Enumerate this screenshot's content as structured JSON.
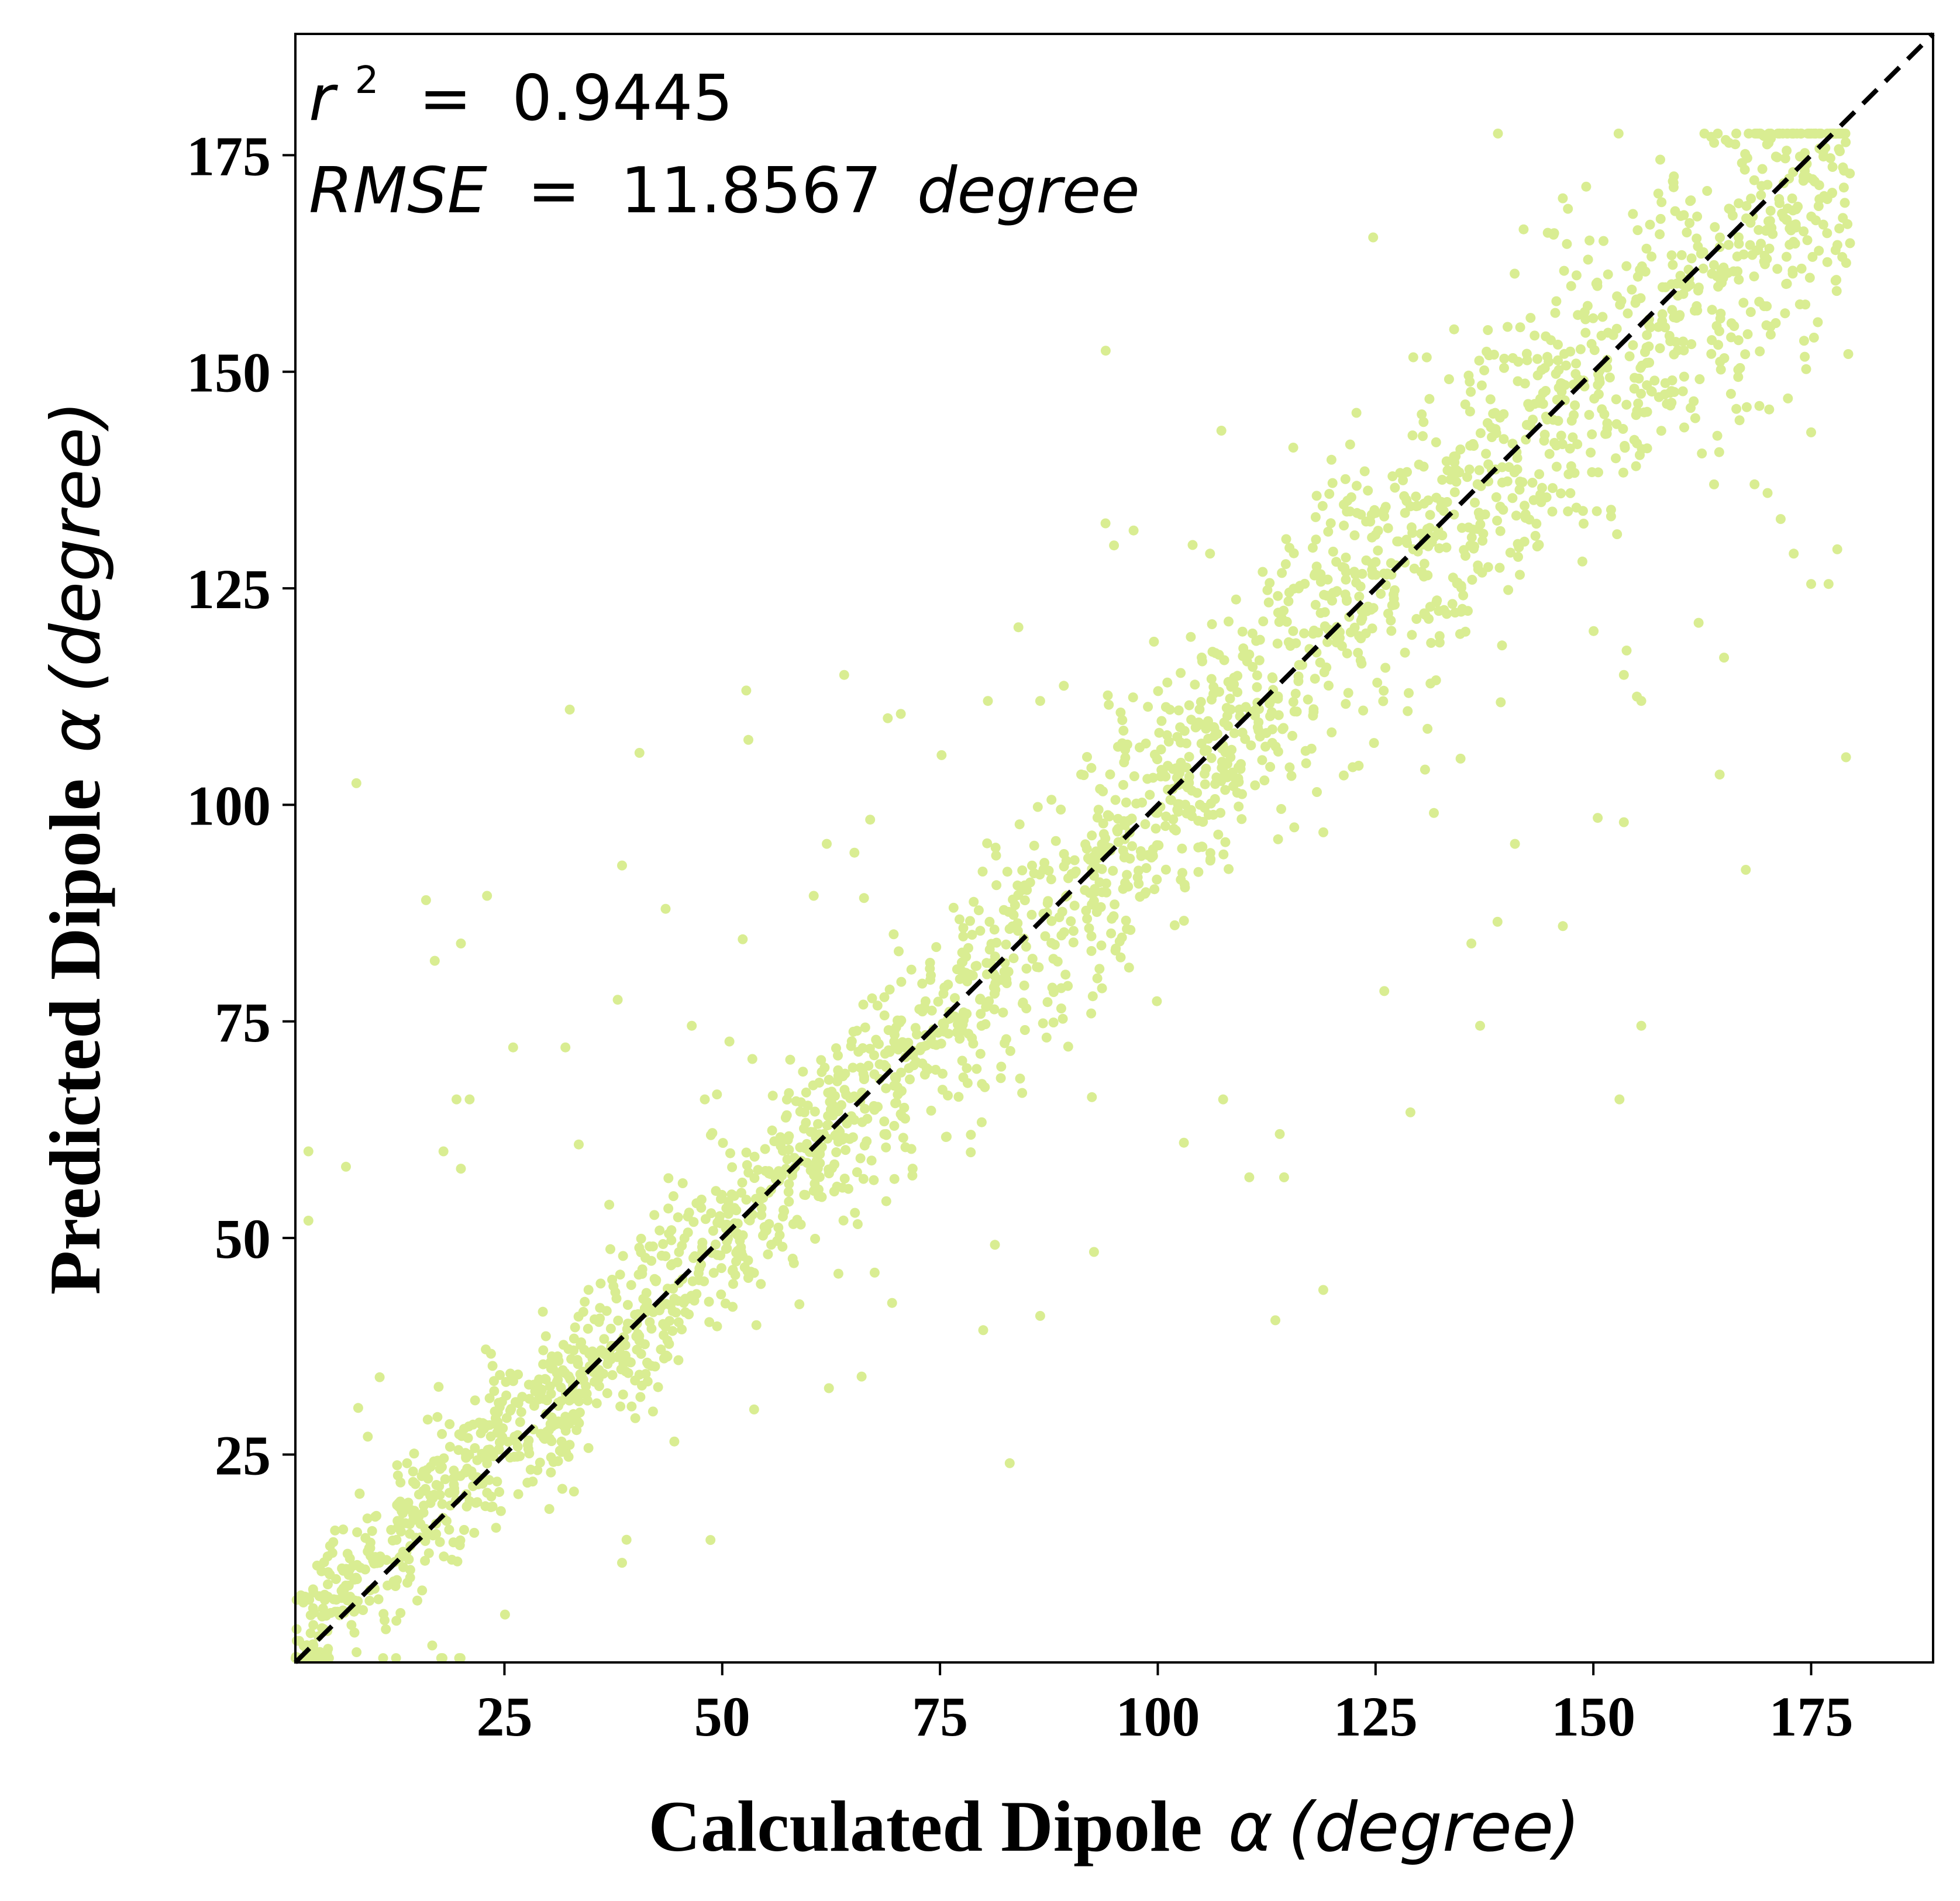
{
  "chart_data": {
    "type": "scatter",
    "xlabel": {
      "bold": "Calculated Dipole",
      "symbol": "α",
      "unit": "(degree)"
    },
    "ylabel": {
      "bold": "Predicted  Dipole",
      "symbol": "α",
      "unit": "(degree)"
    },
    "xlim": [
      1,
      189
    ],
    "ylim": [
      1,
      189
    ],
    "xticks": [
      25,
      50,
      75,
      100,
      125,
      150,
      175
    ],
    "yticks": [
      25,
      50,
      75,
      100,
      125,
      150,
      175
    ],
    "grid": false,
    "point_color": "#d9ed92",
    "reference_line": {
      "style": "dashed",
      "color": "#000000",
      "from": [
        1,
        1
      ],
      "to": [
        189,
        189
      ]
    },
    "annotations": {
      "r2_label": "r",
      "r2_sup": "2",
      "r2_eq": " = ",
      "r2_value": "0.9445",
      "rmse_label": "RMSE",
      "rmse_eq": " = ",
      "rmse_value": "11.8567",
      "rmse_unit": "degree"
    },
    "outliers": [
      [
        8,
        102.5
      ],
      [
        32.5,
        111
      ],
      [
        40.5,
        106
      ],
      [
        38.5,
        93
      ],
      [
        43.5,
        88
      ],
      [
        23,
        89.5
      ],
      [
        16,
        89
      ],
      [
        17,
        82
      ],
      [
        20,
        84
      ],
      [
        19.5,
        66
      ],
      [
        21,
        66
      ],
      [
        20,
        58
      ],
      [
        18,
        60
      ],
      [
        2.5,
        60
      ],
      [
        2.5,
        52
      ],
      [
        26,
        72
      ],
      [
        32,
        72
      ],
      [
        38,
        77.5
      ],
      [
        53,
        107.5
      ],
      [
        64,
        115
      ],
      [
        69,
        110
      ],
      [
        70.5,
        110.5
      ],
      [
        62,
        95.5
      ],
      [
        60.5,
        89.5
      ],
      [
        46.5,
        74.5
      ],
      [
        48,
        66
      ],
      [
        44.5,
        26.5
      ],
      [
        38.5,
        12.5
      ],
      [
        83,
        24
      ],
      [
        86.5,
        41
      ],
      [
        66,
        34
      ],
      [
        67.5,
        46
      ],
      [
        69.5,
        42.5
      ],
      [
        94,
        132.5
      ],
      [
        104,
        130
      ],
      [
        106,
        129
      ],
      [
        84,
        120.5
      ],
      [
        80.5,
        112
      ],
      [
        86.5,
        112
      ],
      [
        103,
        61
      ],
      [
        107.5,
        66
      ],
      [
        110.5,
        57
      ],
      [
        113.5,
        40.5
      ],
      [
        114.5,
        57
      ],
      [
        114,
        62
      ],
      [
        119,
        44
      ],
      [
        129,
        64.5
      ],
      [
        137,
        74.5
      ],
      [
        126,
        78.5
      ],
      [
        146.5,
        86
      ],
      [
        139,
        86.5
      ],
      [
        136,
        84
      ],
      [
        141,
        95.5
      ],
      [
        150.5,
        98.5
      ],
      [
        153.5,
        98
      ],
      [
        155.5,
        74.5
      ],
      [
        153,
        66
      ],
      [
        167.5,
        92.5
      ],
      [
        164.5,
        103.5
      ],
      [
        179,
        105.5
      ],
      [
        145.5,
        166
      ],
      [
        178,
        129.5
      ],
      [
        173,
        129
      ],
      [
        175,
        125.5
      ],
      [
        177,
        125.5
      ],
      [
        165,
        117
      ],
      [
        155,
        112.5
      ],
      [
        153.5,
        115
      ],
      [
        155.5,
        112
      ],
      [
        168.5,
        137
      ],
      [
        170,
        136
      ],
      [
        171.5,
        133
      ],
      [
        175,
        143
      ]
    ]
  }
}
